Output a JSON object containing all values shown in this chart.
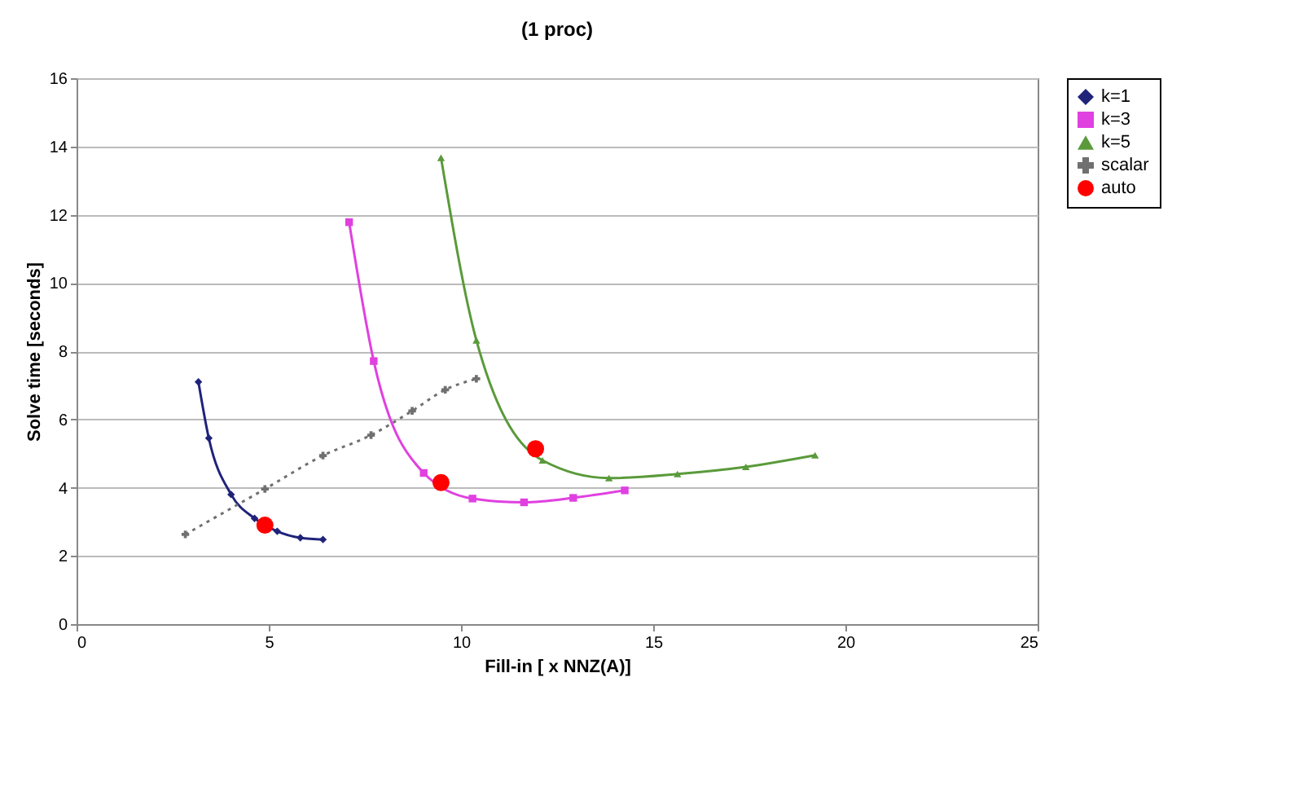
{
  "chart_data": {
    "type": "line",
    "title": "(1 proc)",
    "xlabel": "Fill-in [ x NNZ(A)]",
    "ylabel": "Solve time [seconds]",
    "xlim": [
      0,
      25
    ],
    "xticks": [
      0,
      5,
      10,
      15,
      20,
      25
    ],
    "ylim": [
      0,
      16
    ],
    "yticks": [
      0,
      2,
      4,
      6,
      8,
      10,
      12,
      14,
      16
    ],
    "grid": "y",
    "legend": "right",
    "series": [
      {
        "name": "k=1",
        "color": "#1f237a",
        "marker": "diamond",
        "line_style": "solid",
        "x": [
          3.17,
          3.44,
          4.02,
          4.63,
          5.22,
          5.82,
          6.41
        ],
        "values": [
          7.1,
          5.45,
          3.8,
          3.1,
          2.72,
          2.53,
          2.48
        ]
      },
      {
        "name": "k=3",
        "color": "#e040e0",
        "marker": "square",
        "line_style": "solid",
        "x": [
          7.09,
          7.73,
          9.03,
          10.3,
          11.64,
          12.92,
          14.26
        ],
        "values": [
          11.78,
          7.71,
          4.43,
          3.68,
          3.57,
          3.7,
          3.92
        ]
      },
      {
        "name": "k=5",
        "color": "#5a9a3a",
        "marker": "triangle",
        "line_style": "solid",
        "x": [
          9.48,
          10.4,
          12.12,
          13.85,
          15.63,
          17.41,
          19.21
        ],
        "values": [
          13.67,
          8.32,
          4.8,
          4.28,
          4.4,
          4.61,
          4.95
        ]
      },
      {
        "name": "scalar",
        "color": "#707070",
        "marker": "cross",
        "line_style": "dotted",
        "x": [
          2.83,
          4.9,
          6.41,
          7.66,
          8.73,
          9.59,
          10.4
        ],
        "values": [
          2.63,
          3.96,
          4.94,
          5.54,
          6.25,
          6.87,
          7.19
        ]
      },
      {
        "name": "auto",
        "type": "scatter",
        "color": "#ff0000",
        "marker": "circle",
        "x": [
          4.9,
          9.48,
          11.94
        ],
        "values": [
          2.9,
          4.15,
          5.14
        ]
      }
    ]
  }
}
